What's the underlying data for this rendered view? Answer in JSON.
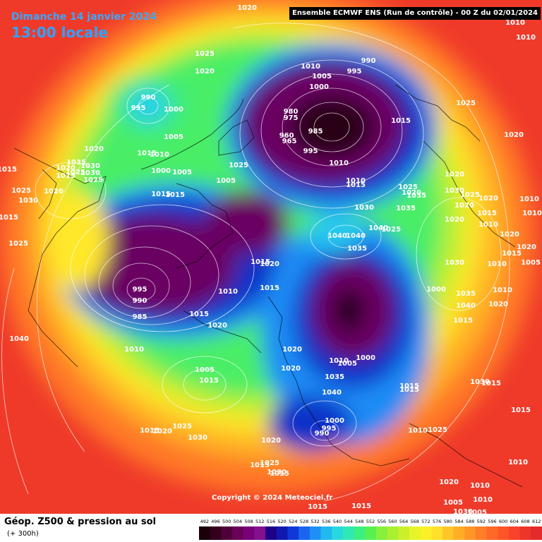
{
  "header": {
    "date": "Dimanche 14 janvier 2024",
    "local_time": "13:00 locale",
    "model_run": "Ensemble ECMWF ENS  (Run de contrôle)  -  00 Z du 02/01/2024"
  },
  "map": {
    "projection": "polar-stereographic north",
    "copyright": "Copyright © 2024 Meteociel.fr",
    "pressure_labels": [
      {
        "t": "1020"
      },
      {
        "t": "1010"
      },
      {
        "t": "1010"
      },
      {
        "t": "1025"
      },
      {
        "t": "1020"
      },
      {
        "t": "990"
      },
      {
        "t": "1010"
      },
      {
        "t": "1005"
      },
      {
        "t": "995"
      },
      {
        "t": "1000"
      },
      {
        "t": "990"
      },
      {
        "t": "995"
      },
      {
        "t": "1000"
      },
      {
        "t": "1005"
      },
      {
        "t": "980"
      },
      {
        "t": "975"
      },
      {
        "t": "985"
      },
      {
        "t": "960"
      },
      {
        "t": "965"
      },
      {
        "t": "995"
      },
      {
        "t": "1015"
      },
      {
        "t": "1025"
      },
      {
        "t": "1020"
      },
      {
        "t": "1020"
      },
      {
        "t": "1015"
      },
      {
        "t": "1010"
      },
      {
        "t": "1000"
      },
      {
        "t": "1005"
      },
      {
        "t": "1025"
      },
      {
        "t": "1035"
      },
      {
        "t": "1030"
      },
      {
        "t": "1020"
      },
      {
        "t": "1015"
      },
      {
        "t": "1025"
      },
      {
        "t": "1030"
      },
      {
        "t": "1025"
      },
      {
        "t": "1025"
      },
      {
        "t": "1020"
      },
      {
        "t": "1015"
      },
      {
        "t": "1015"
      },
      {
        "t": "1010"
      },
      {
        "t": "1010"
      },
      {
        "t": "1015"
      },
      {
        "t": "1025"
      },
      {
        "t": "1020"
      },
      {
        "t": "1005"
      },
      {
        "t": "1015"
      },
      {
        "t": "1020"
      },
      {
        "t": "995"
      },
      {
        "t": "990"
      },
      {
        "t": "985"
      },
      {
        "t": "1010"
      },
      {
        "t": "1000"
      },
      {
        "t": "1010"
      },
      {
        "t": "1005"
      },
      {
        "t": "1020"
      },
      {
        "t": "1020"
      },
      {
        "t": "1030"
      },
      {
        "t": "1040"
      },
      {
        "t": "1040"
      },
      {
        "t": "1035"
      },
      {
        "t": "1040"
      },
      {
        "t": "1025"
      },
      {
        "t": "1035"
      },
      {
        "t": "1035"
      },
      {
        "t": "1030"
      },
      {
        "t": "1025"
      },
      {
        "t": "1020"
      },
      {
        "t": "1020"
      },
      {
        "t": "1015"
      },
      {
        "t": "1010"
      },
      {
        "t": "1020"
      },
      {
        "t": "1020"
      },
      {
        "t": "1010"
      },
      {
        "t": "1010"
      },
      {
        "t": "1030"
      },
      {
        "t": "1035"
      },
      {
        "t": "1040"
      },
      {
        "t": "1020"
      },
      {
        "t": "1015"
      },
      {
        "t": "1015"
      },
      {
        "t": "1020"
      },
      {
        "t": "1010"
      },
      {
        "t": "1005"
      },
      {
        "t": "1000"
      },
      {
        "t": "1010"
      },
      {
        "t": "1005"
      },
      {
        "t": "1015"
      },
      {
        "t": "1025"
      },
      {
        "t": "1020"
      },
      {
        "t": "1015"
      },
      {
        "t": "1035"
      },
      {
        "t": "1040"
      },
      {
        "t": "1015"
      },
      {
        "t": "1015"
      },
      {
        "t": "1025"
      },
      {
        "t": "1030"
      },
      {
        "t": "1000"
      },
      {
        "t": "995"
      },
      {
        "t": "990"
      },
      {
        "t": "1010"
      },
      {
        "t": "1020"
      },
      {
        "t": "1015"
      },
      {
        "t": "1015"
      },
      {
        "t": "1015"
      },
      {
        "t": "1015"
      },
      {
        "t": "1015"
      },
      {
        "t": "1010"
      },
      {
        "t": "1010"
      },
      {
        "t": "1005"
      },
      {
        "t": "1005"
      },
      {
        "t": "1010"
      },
      {
        "t": "1020"
      },
      {
        "t": "1030"
      },
      {
        "t": "1025"
      },
      {
        "t": "1015"
      },
      {
        "t": "1030"
      },
      {
        "t": "1025"
      },
      {
        "t": "1030"
      },
      {
        "t": "1040"
      },
      {
        "t": "1030"
      },
      {
        "t": "1015"
      },
      {
        "t": "1020"
      },
      {
        "t": "1010"
      },
      {
        "t": "1015"
      },
      {
        "t": "1015"
      },
      {
        "t": "1020"
      },
      {
        "t": "1015"
      }
    ]
  },
  "footer": {
    "parameter": "Géop. Z500 & pression au sol",
    "lead_time": "(+ 300h)"
  },
  "legend": {
    "values": [
      "492",
      "496",
      "500",
      "504",
      "508",
      "512",
      "516",
      "520",
      "524",
      "528",
      "532",
      "536",
      "540",
      "544",
      "548",
      "552",
      "556",
      "560",
      "564",
      "568",
      "572",
      "576",
      "580",
      "584",
      "588",
      "592",
      "596",
      "600",
      "604",
      "608",
      "612"
    ],
    "colors": [
      "#1a0008",
      "#34001e",
      "#4f0038",
      "#6a0058",
      "#7a0078",
      "#85108e",
      "#1e0088",
      "#1018b0",
      "#1038d8",
      "#1a64f0",
      "#1e90f5",
      "#22b8f0",
      "#28d8e0",
      "#30e8b4",
      "#3cf080",
      "#58f050",
      "#86f03c",
      "#aaf030",
      "#caf02a",
      "#e6f428",
      "#fcf028",
      "#ffe02a",
      "#ffc628",
      "#ffae26",
      "#ff9626",
      "#ff7e26",
      "#ff6828",
      "#ff5428",
      "#f8422a",
      "#ef342a",
      "#e42a2a"
    ]
  }
}
